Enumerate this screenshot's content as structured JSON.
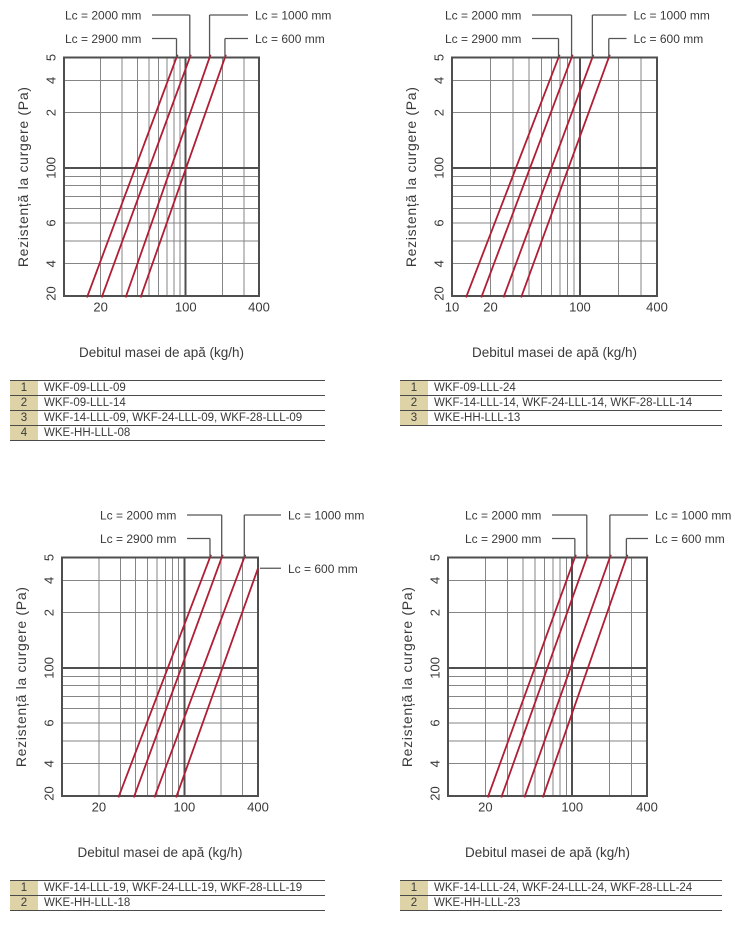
{
  "palette": {
    "line_red": "#b01e34",
    "grid": "#868686",
    "grid_strong": "#4f4f4f",
    "leader": "#555555",
    "text": "#3a3a3a",
    "table_rule": "#4a4a4a",
    "badge_bg": "#ddd3a6",
    "background": "#ffffff"
  },
  "chart_data": [
    {
      "name": "top-left",
      "type": "line",
      "x_scale": "log",
      "y_scale": "log",
      "xlabel": "Debitul masei de apă (kg/h)",
      "ylabel": "Rezistență la curgere (Pa)",
      "xlim": [
        10,
        400
      ],
      "ylim": [
        20,
        400
      ],
      "x_ticks": [
        {
          "label": "20",
          "pos": 20
        },
        {
          "label": "100",
          "pos": 100
        },
        {
          "label": "400",
          "pos": 400
        }
      ],
      "y_ticks": [
        {
          "label": "5",
          "pos": 400
        },
        {
          "label": "4",
          "pos": 300
        },
        {
          "label": "2",
          "pos": 200
        },
        {
          "label": "100",
          "pos": 100
        },
        {
          "label": "6",
          "pos": 50
        },
        {
          "label": "4",
          "pos": 30
        },
        {
          "label": "20",
          "pos": 20
        }
      ],
      "series": [
        {
          "label": "Lc = 2900 mm",
          "lc_mm": 2900,
          "x_at_20pa": 15.6,
          "x_at_400pa": 84
        },
        {
          "label": "Lc = 2000 mm",
          "lc_mm": 2000,
          "x_at_20pa": 20.6,
          "x_at_400pa": 108
        },
        {
          "label": "Lc = 1000 mm",
          "lc_mm": 1000,
          "x_at_20pa": 32.4,
          "x_at_400pa": 157
        },
        {
          "label": "Lc = 600 mm",
          "lc_mm": 600,
          "x_at_20pa": 43,
          "x_at_400pa": 210
        }
      ],
      "legend": [
        {
          "lc_mm": 2000,
          "row": 0,
          "side": "left",
          "attach": "top"
        },
        {
          "lc_mm": 1000,
          "row": 0,
          "side": "right",
          "attach": "top"
        },
        {
          "lc_mm": 2900,
          "row": 1,
          "side": "left",
          "attach": "top"
        },
        {
          "lc_mm": 600,
          "row": 1,
          "side": "right",
          "attach": "top"
        }
      ],
      "table": [
        {
          "no": "1",
          "models": "WKF-09-LLL-09"
        },
        {
          "no": "2",
          "models": "WKF-09-LLL-14"
        },
        {
          "no": "3",
          "models": "WKF-14-LLL-09, WKF-24-LLL-09, WKF-28-LLL-09"
        },
        {
          "no": "4",
          "models": "WKE-HH-LLL-08"
        }
      ]
    },
    {
      "name": "top-right",
      "type": "line",
      "x_scale": "log",
      "y_scale": "log",
      "xlabel": "Debitul masei de apă (kg/h)",
      "ylabel": "Rezistență la curgere (Pa)",
      "xlim": [
        10,
        400
      ],
      "ylim": [
        20,
        400
      ],
      "x_ticks": [
        {
          "label": "10",
          "pos": 10
        },
        {
          "label": "20",
          "pos": 20
        },
        {
          "label": "100",
          "pos": 100
        },
        {
          "label": "400",
          "pos": 400
        }
      ],
      "y_ticks": [
        {
          "label": "5",
          "pos": 400
        },
        {
          "label": "4",
          "pos": 300
        },
        {
          "label": "2",
          "pos": 200
        },
        {
          "label": "100",
          "pos": 100
        },
        {
          "label": "6",
          "pos": 50
        },
        {
          "label": "4",
          "pos": 30
        },
        {
          "label": "20",
          "pos": 20
        }
      ],
      "series": [
        {
          "label": "Lc = 2900 mm",
          "lc_mm": 2900,
          "x_at_20pa": 13,
          "x_at_400pa": 68
        },
        {
          "label": "Lc = 2000 mm",
          "lc_mm": 2000,
          "x_at_20pa": 17.1,
          "x_at_400pa": 86
        },
        {
          "label": "Lc = 1000 mm",
          "lc_mm": 1000,
          "x_at_20pa": 25.5,
          "x_at_400pa": 125
        },
        {
          "label": "Lc = 600 mm",
          "lc_mm": 600,
          "x_at_20pa": 35,
          "x_at_400pa": 168
        }
      ],
      "legend": [
        {
          "lc_mm": 2000,
          "row": 0,
          "side": "left",
          "attach": "top"
        },
        {
          "lc_mm": 1000,
          "row": 0,
          "side": "right",
          "attach": "top"
        },
        {
          "lc_mm": 2900,
          "row": 1,
          "side": "left",
          "attach": "top"
        },
        {
          "lc_mm": 600,
          "row": 1,
          "side": "right",
          "attach": "top"
        }
      ],
      "table": [
        {
          "no": "1",
          "models": "WKF-09-LLL-24"
        },
        {
          "no": "2",
          "models": "WKF-14-LLL-14, WKF-24-LLL-14, WKF-28-LLL-14"
        },
        {
          "no": "3",
          "models": "WKE-HH-LLL-13"
        }
      ]
    },
    {
      "name": "bottom-left",
      "type": "line",
      "x_scale": "log",
      "y_scale": "log",
      "xlabel": "Debitul masei de apă (kg/h)",
      "ylabel": "Rezistență la curgere (Pa)",
      "xlim": [
        10,
        400
      ],
      "ylim": [
        20,
        400
      ],
      "x_ticks": [
        {
          "label": "20",
          "pos": 20
        },
        {
          "label": "100",
          "pos": 100
        },
        {
          "label": "400",
          "pos": 400
        }
      ],
      "y_ticks": [
        {
          "label": "5",
          "pos": 400
        },
        {
          "label": "4",
          "pos": 300
        },
        {
          "label": "2",
          "pos": 200
        },
        {
          "label": "100",
          "pos": 100
        },
        {
          "label": "6",
          "pos": 50
        },
        {
          "label": "4",
          "pos": 30
        },
        {
          "label": "20",
          "pos": 20
        }
      ],
      "series": [
        {
          "label": "Lc = 2900 mm",
          "lc_mm": 2900,
          "x_at_20pa": 29.2,
          "x_at_400pa": 162
        },
        {
          "label": "Lc = 2000 mm",
          "lc_mm": 2000,
          "x_at_20pa": 39,
          "x_at_400pa": 202
        },
        {
          "label": "Lc = 1000 mm",
          "lc_mm": 1000,
          "x_at_20pa": 57.5,
          "x_at_400pa": 309
        },
        {
          "label": "Lc = 600 mm",
          "lc_mm": 600,
          "x_at_20pa": 86.5,
          "x_at_400pa": 430
        }
      ],
      "legend": [
        {
          "lc_mm": 2000,
          "row": 0,
          "side": "left",
          "attach": "top"
        },
        {
          "lc_mm": 1000,
          "row": 0,
          "side": "right",
          "attach": "top"
        },
        {
          "lc_mm": 2900,
          "row": 1,
          "side": "left",
          "attach": "top"
        },
        {
          "lc_mm": 600,
          "row": 2,
          "side": "right",
          "attach": "line_end"
        }
      ],
      "table": [
        {
          "no": "1",
          "models": "WKF-14-LLL-19, WKF-24-LLL-19, WKF-28-LLL-19"
        },
        {
          "no": "2",
          "models": "WKE-HH-LLL-18"
        }
      ]
    },
    {
      "name": "bottom-right",
      "type": "line",
      "x_scale": "log",
      "y_scale": "log",
      "xlabel": "Debitul masei de apă (kg/h)",
      "ylabel": "Rezistență la curgere (Pa)",
      "xlim": [
        10,
        400
      ],
      "ylim": [
        20,
        400
      ],
      "x_ticks": [
        {
          "label": "20",
          "pos": 20
        },
        {
          "label": "100",
          "pos": 100
        },
        {
          "label": "400",
          "pos": 400
        }
      ],
      "y_ticks": [
        {
          "label": "5",
          "pos": 400
        },
        {
          "label": "4",
          "pos": 300
        },
        {
          "label": "2",
          "pos": 200
        },
        {
          "label": "100",
          "pos": 100
        },
        {
          "label": "6",
          "pos": 50
        },
        {
          "label": "4",
          "pos": 30
        },
        {
          "label": "20",
          "pos": 20
        }
      ],
      "series": [
        {
          "label": "Lc = 2900 mm",
          "lc_mm": 2900,
          "x_at_20pa": 21.1,
          "x_at_400pa": 105
        },
        {
          "label": "Lc = 2000 mm",
          "lc_mm": 2000,
          "x_at_20pa": 27.1,
          "x_at_400pa": 131
        },
        {
          "label": "Lc = 1000 mm",
          "lc_mm": 1000,
          "x_at_20pa": 41.6,
          "x_at_400pa": 201
        },
        {
          "label": "Lc = 600 mm",
          "lc_mm": 600,
          "x_at_20pa": 58.5,
          "x_at_400pa": 273
        }
      ],
      "legend": [
        {
          "lc_mm": 2000,
          "row": 0,
          "side": "left",
          "attach": "top"
        },
        {
          "lc_mm": 1000,
          "row": 0,
          "side": "right",
          "attach": "top"
        },
        {
          "lc_mm": 2900,
          "row": 1,
          "side": "left",
          "attach": "top"
        },
        {
          "lc_mm": 600,
          "row": 1,
          "side": "right",
          "attach": "top"
        }
      ],
      "table": [
        {
          "no": "1",
          "models": "WKF-14-LLL-24, WKF-24-LLL-24, WKF-28-LLL-24"
        },
        {
          "no": "2",
          "models": "WKE-HH-LLL-23"
        }
      ]
    }
  ]
}
